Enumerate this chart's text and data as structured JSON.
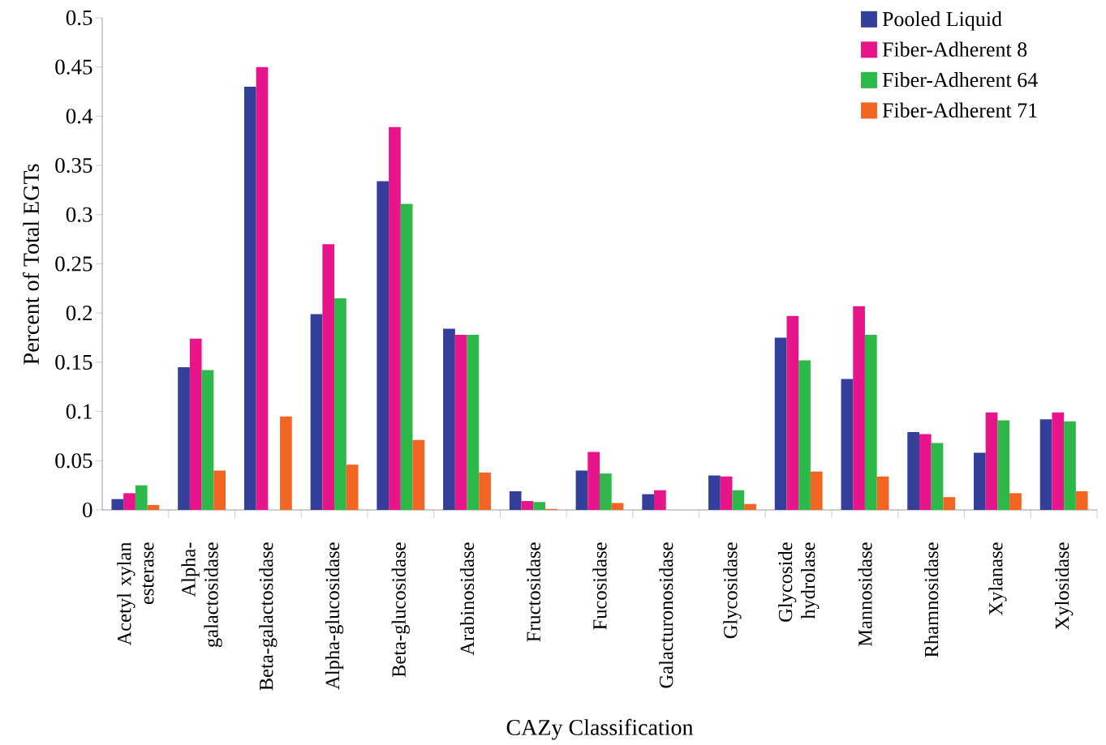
{
  "chart_data": {
    "type": "bar",
    "xlabel": "CAZy Classification",
    "ylabel": "Percent of Total EGTs",
    "categories": [
      "Acetyl xylan esterase",
      "Alpha-galactosidase",
      "Beta-galactosidase",
      "Alpha-glucosidase",
      "Beta-glucosidase",
      "Arabinosidase",
      "Fructosidase",
      "Fucosidase",
      "Galacturonosidase",
      "Glycosidase",
      "Glycoside hydrolase",
      "Mannosidase",
      "Rhamnosidase",
      "Xylanase",
      "Xylosidase"
    ],
    "series": [
      {
        "name": "Pooled Liquid",
        "color": "#333f99",
        "values": [
          0.011,
          0.145,
          0.43,
          0.199,
          0.334,
          0.184,
          0.019,
          0.04,
          0.016,
          0.035,
          0.175,
          0.133,
          0.079,
          0.058,
          0.092
        ]
      },
      {
        "name": "Fiber-Adherent 8",
        "color": "#e8158a",
        "values": [
          0.017,
          0.174,
          0.45,
          0.27,
          0.389,
          0.178,
          0.009,
          0.059,
          0.02,
          0.034,
          0.197,
          0.207,
          0.077,
          0.099,
          0.099
        ]
      },
      {
        "name": "Fiber-Adherent 64",
        "color": "#2db84a",
        "values": [
          0.025,
          0.142,
          0,
          0.215,
          0.311,
          0.178,
          0.008,
          0.037,
          0,
          0.02,
          0.152,
          0.178,
          0.068,
          0.091,
          0.09
        ]
      },
      {
        "name": "Fiber-Adherent 71",
        "color": "#f26522",
        "values": [
          0.005,
          0.04,
          0.095,
          0.046,
          0.071,
          0.038,
          0.001,
          0.007,
          0,
          0.006,
          0.039,
          0.034,
          0.013,
          0.017,
          0.019
        ]
      }
    ],
    "ylim": [
      0,
      0.5
    ],
    "yticks": [
      0,
      0.05,
      0.1,
      0.15,
      0.2,
      0.25,
      0.3,
      0.35,
      0.4,
      0.45,
      0.5
    ],
    "grid": false,
    "legend": "top right"
  }
}
